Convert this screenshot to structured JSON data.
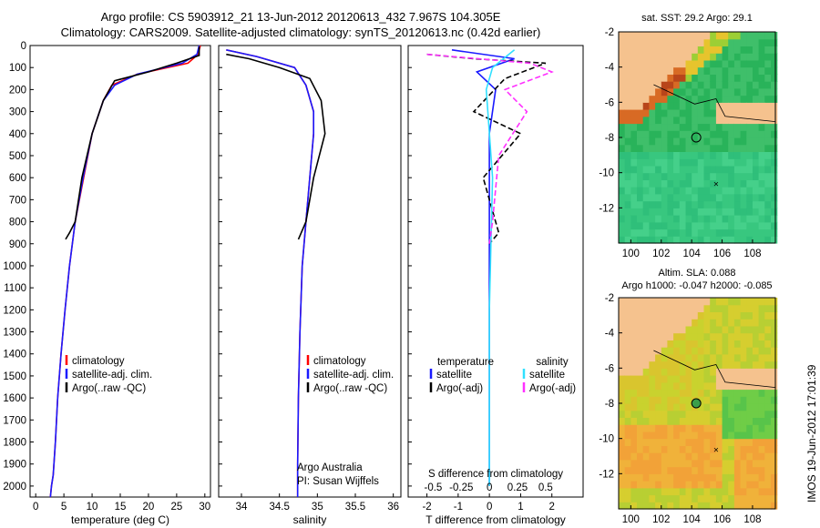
{
  "header": {
    "line1": "Argo profile: CS 5903912_21 13-Jun-2012 20120613_432 7.967S 104.305E",
    "line2": "Climatology: CARS2009. Satellite-adjusted climatology: synTS_20120613.nc (0.42d earlier)"
  },
  "timestamp": "IMOS 19-Jun-2012 17:01:39",
  "colors": {
    "climatology": "#ff0000",
    "satellite": "#1a1aff",
    "argo": "#000000",
    "sat_salinity": "#30e0ff",
    "argo_salinity": "#ff30ff",
    "land": "#f5c28e"
  },
  "chart_data": [
    {
      "type": "line",
      "id": "temperature",
      "xlabel": "temperature (deg C)",
      "ylabel": "",
      "xlim": [
        -1,
        31
      ],
      "ylim": [
        2050,
        0
      ],
      "xticks": [
        "0",
        "5",
        "10",
        "15",
        "20",
        "25",
        "30"
      ],
      "xtick_values": [
        0,
        5,
        10,
        15,
        20,
        25,
        30
      ],
      "yticks": [
        "0",
        "100",
        "200",
        "300",
        "400",
        "500",
        "600",
        "700",
        "800",
        "900",
        "1000",
        "1100",
        "1200",
        "1300",
        "1400",
        "1500",
        "1600",
        "1700",
        "1800",
        "1900",
        "2000"
      ],
      "ytick_values": [
        0,
        100,
        200,
        300,
        400,
        500,
        600,
        700,
        800,
        900,
        1000,
        1100,
        1200,
        1300,
        1400,
        1500,
        1600,
        1700,
        1800,
        1900,
        2000
      ],
      "legend": [
        "climatology",
        "satellite-adj. clim.",
        "Argo(..raw -QC)"
      ],
      "series": [
        {
          "name": "climatology",
          "color": "#ff0000",
          "x": [
            29.2,
            28.8,
            27,
            18,
            13.5,
            12,
            10,
            8.5,
            7,
            6,
            5.2,
            4.5,
            3.9,
            3.5,
            3.1,
            2.8,
            2.6
          ],
          "y": [
            0,
            40,
            80,
            130,
            180,
            250,
            400,
            600,
            800,
            1000,
            1200,
            1400,
            1600,
            1800,
            1950,
            2000,
            2050
          ]
        },
        {
          "name": "satellite-adj. clim.",
          "color": "#1a1aff",
          "x": [
            29,
            28.6,
            26,
            18,
            14,
            12,
            10,
            8.4,
            7,
            6,
            5.2,
            4.5,
            3.9,
            3.5,
            3.1,
            2.8,
            2.6
          ],
          "y": [
            0,
            40,
            80,
            130,
            180,
            250,
            400,
            600,
            800,
            1000,
            1200,
            1400,
            1600,
            1800,
            1950,
            2000,
            2050
          ]
        },
        {
          "name": "Argo(..raw -QC)",
          "color": "#000000",
          "x": [
            29,
            29,
            25,
            20,
            14,
            12,
            10,
            8.2,
            7,
            6,
            5.3
          ],
          "y": [
            5,
            45,
            80,
            120,
            160,
            250,
            400,
            600,
            800,
            850,
            880
          ]
        }
      ]
    },
    {
      "type": "line",
      "id": "salinity",
      "xlabel": "salinity",
      "xlim": [
        33.7,
        36.1
      ],
      "ylim": [
        2050,
        0
      ],
      "xticks": [
        "34",
        "34.5",
        "35",
        "35.5",
        "36"
      ],
      "xtick_values": [
        34,
        34.5,
        35,
        35.5,
        36
      ],
      "legend": [
        "climatology",
        "satellite-adj. clim.",
        "Argo(..raw -QC)"
      ],
      "annotations": [
        "Argo Australia",
        "PI: Susan Wijffels"
      ],
      "series": [
        {
          "name": "climatology",
          "color": "#ff0000",
          "x": [
            33.8,
            34.2,
            34.7,
            34.85,
            34.95,
            34.95,
            34.9,
            34.85,
            34.8,
            34.77,
            34.75,
            34.74,
            34.74
          ],
          "y": [
            20,
            50,
            100,
            180,
            300,
            400,
            600,
            800,
            1000,
            1300,
            1600,
            1900,
            2050
          ]
        },
        {
          "name": "satellite-adj. clim.",
          "color": "#1a1aff",
          "x": [
            33.8,
            34.2,
            34.7,
            34.85,
            34.95,
            34.95,
            34.9,
            34.85,
            34.8,
            34.77,
            34.75,
            34.74,
            34.74
          ],
          "y": [
            20,
            50,
            100,
            180,
            300,
            400,
            600,
            800,
            1000,
            1300,
            1600,
            1900,
            2050
          ]
        },
        {
          "name": "Argo(..raw -QC)",
          "color": "#000000",
          "x": [
            33.8,
            34.1,
            34.5,
            34.9,
            35.05,
            35.1,
            34.95,
            34.9,
            34.85,
            34.75
          ],
          "y": [
            40,
            60,
            100,
            150,
            250,
            400,
            600,
            700,
            800,
            880
          ]
        }
      ]
    },
    {
      "type": "line",
      "id": "difference",
      "xlabel": "T difference from climatology",
      "top_label": "S difference from climatology",
      "xlim": [
        -2.6,
        3
      ],
      "ylim": [
        2050,
        0
      ],
      "xticks": [
        "-2",
        "-1",
        "0",
        "1",
        "2"
      ],
      "xtick_values": [
        -2,
        -1,
        0,
        1,
        2
      ],
      "sticks": [
        "-0.5",
        "-0.25",
        "0",
        "0.25",
        "0.5"
      ],
      "stick_values": [
        -1.8,
        -0.9,
        0,
        0.9,
        1.8
      ],
      "legend_left_title": "temperature",
      "legend_right_title": "salinity",
      "legend": [
        "satellite",
        "Argo(-adj)",
        "satellite",
        "Argo(-adj)"
      ],
      "series": [
        {
          "name": "satellite",
          "color": "#1a1aff",
          "x": [
            -1.2,
            0.8,
            -0.4,
            0.2,
            0,
            0
          ],
          "y": [
            20,
            60,
            120,
            200,
            400,
            2000
          ]
        },
        {
          "name": "Argo(-adj)",
          "color": "#000000",
          "x": [
            -2,
            -0.5,
            1.8,
            0.5,
            -0.5,
            1,
            -0.2,
            0.3,
            0
          ],
          "y": [
            40,
            60,
            80,
            150,
            300,
            400,
            600,
            850,
            900
          ]
        },
        {
          "name": "satellite",
          "color": "#30e0ff",
          "x": [
            0.8,
            0.1,
            -0.1,
            0.1,
            0,
            0
          ],
          "y": [
            20,
            100,
            200,
            600,
            1200,
            2000
          ]
        },
        {
          "name": "Argo(-adj)",
          "color": "#ff30ff",
          "x": [
            -2,
            1.3,
            2,
            0.5,
            1.2,
            0.3,
            0.1,
            0
          ],
          "y": [
            40,
            80,
            120,
            200,
            300,
            500,
            800,
            900
          ]
        }
      ]
    },
    {
      "type": "heatmap",
      "id": "sst-map",
      "title": "sat. SST: 29.2 Argo: 29.1",
      "xticks": [
        "100",
        "102",
        "104",
        "106",
        "108"
      ],
      "xtick_values": [
        100,
        102,
        104,
        106,
        108
      ],
      "yticks": [
        "-2",
        "-4",
        "-6",
        "-8",
        "-10",
        "-12"
      ],
      "ytick_values": [
        -2,
        -4,
        -6,
        -8,
        -10,
        -12
      ],
      "xlim": [
        99.2,
        109.5
      ],
      "ylim": [
        -14,
        -2
      ],
      "marker": [
        104.3,
        -8
      ]
    },
    {
      "type": "heatmap",
      "id": "sla-map",
      "title": "Altim. SLA: 0.088",
      "subtitle": "Argo h1000: -0.047 h2000: -0.085",
      "xticks": [
        "100",
        "102",
        "104",
        "106",
        "108"
      ],
      "xtick_values": [
        100,
        102,
        104,
        106,
        108
      ],
      "yticks": [
        "-2",
        "-4",
        "-6",
        "-8",
        "-10",
        "-12"
      ],
      "ytick_values": [
        -2,
        -4,
        -6,
        -8,
        -10,
        -12
      ],
      "xlim": [
        99.2,
        109.5
      ],
      "ylim": [
        -14,
        -2
      ],
      "marker": [
        104.3,
        -8
      ]
    }
  ]
}
